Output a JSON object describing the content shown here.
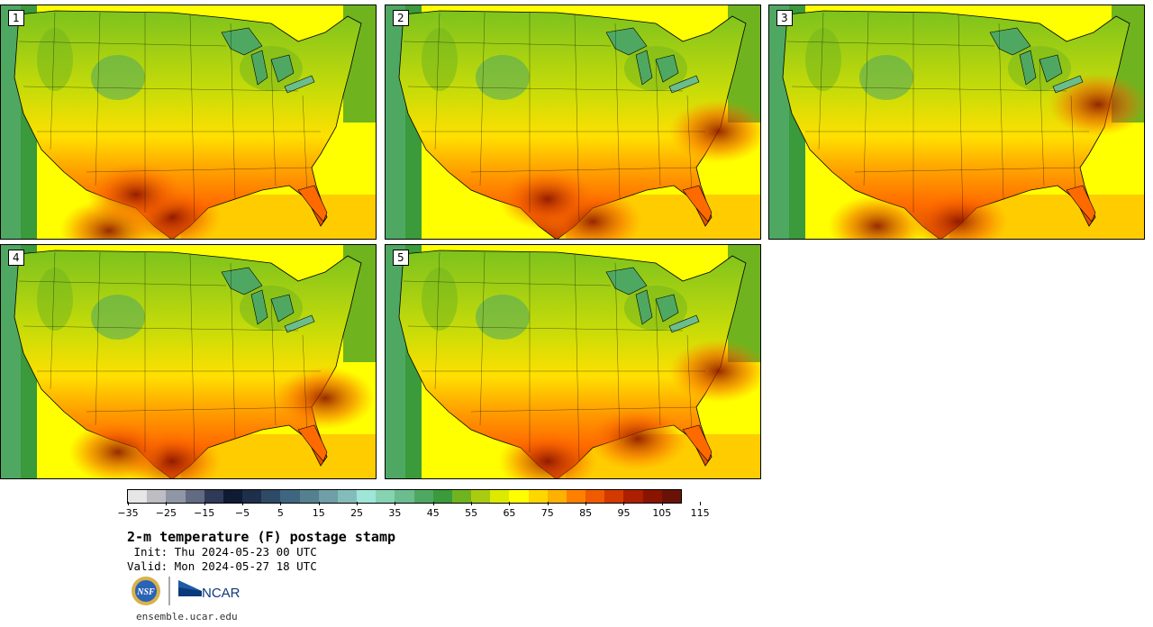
{
  "panels": [
    {
      "label": "1"
    },
    {
      "label": "2"
    },
    {
      "label": "3"
    },
    {
      "label": "4"
    },
    {
      "label": "5"
    }
  ],
  "colorbar": {
    "colors": [
      "#e6e6e6",
      "#bdbdc4",
      "#9196a6",
      "#636b82",
      "#2f3a58",
      "#0f1a33",
      "#1d2f4a",
      "#2e4a66",
      "#3f6680",
      "#54808f",
      "#6f9ea6",
      "#82bdbb",
      "#9ee6d8",
      "#86d2b3",
      "#6cbd8e",
      "#4fa862",
      "#3a9a3c",
      "#6fb41e",
      "#a9cc10",
      "#dcea00",
      "#ffff00",
      "#ffd700",
      "#ffb000",
      "#ff8000",
      "#f05a00",
      "#d23a00",
      "#ad1f00",
      "#8a1400",
      "#6a1208"
    ],
    "tick_labels": [
      "−35",
      "−25",
      "−15",
      "−5",
      "5",
      "15",
      "25",
      "35",
      "45",
      "55",
      "65",
      "75",
      "85",
      "95",
      "105",
      "115"
    ]
  },
  "title": "2-m temperature (F) postage stamp",
  "init_line": " Init: Thu 2024-05-23 00 UTC",
  "valid_line": "Valid: Mon 2024-05-27 18 UTC",
  "logos": {
    "nsf": "NSF",
    "ncar": "NCAR"
  },
  "url": "ensemble.ucar.edu"
}
